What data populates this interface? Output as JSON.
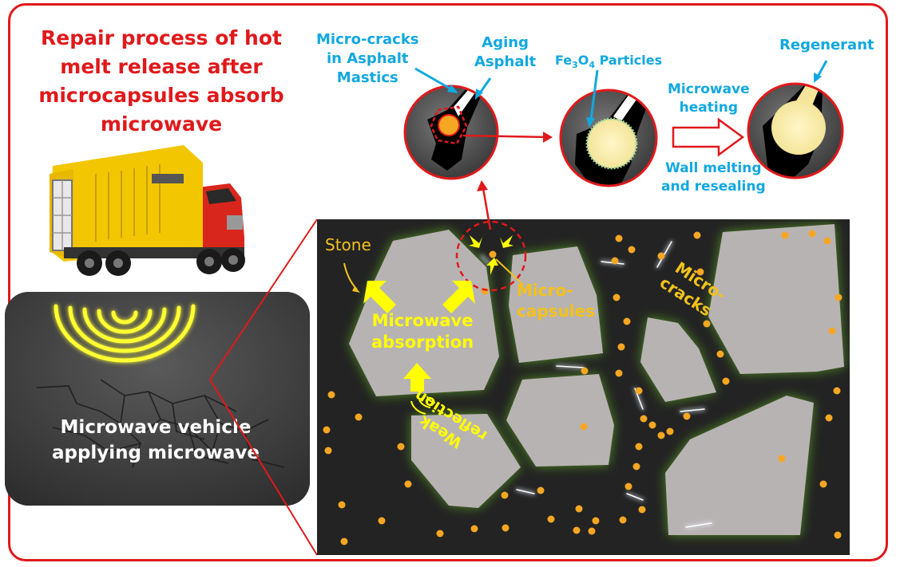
{
  "title_lines": [
    "Repair process of hot",
    "melt release after",
    "microcapsules absorb",
    "microwave"
  ],
  "labels": {
    "micro_cracks_mastics": [
      "Micro-cracks",
      "in Asphalt",
      "Mastics"
    ],
    "aging_asphalt": [
      "Aging",
      "Asphalt"
    ],
    "fe3o4": "Fe",
    "fe3o4_sub1": "3",
    "fe3o4_mid": "O",
    "fe3o4_sub2": "4",
    "fe3o4_rest": " Particles",
    "regenerant": "Regenerant",
    "microwave_heating": [
      "Microwave",
      "heating"
    ],
    "wall_melting": [
      "Wall melting",
      "and resealing"
    ],
    "stone": "Stone",
    "microwave_absorption": [
      "Microwave",
      "absorption"
    ],
    "micro_capsules": [
      "Micro-",
      "capsules"
    ],
    "micro_cracks_scene": [
      "Micro-",
      "cracks"
    ],
    "weak_reflection": [
      "Weak",
      "reflection"
    ],
    "road_caption": [
      "Microwave vehicle",
      "applying microwave"
    ]
  },
  "colors": {
    "frame": "#e0191b",
    "title": "#e0191b",
    "callout": "#11a8e0",
    "scene_text": "#f2c21b",
    "stone": "#b8b3b3",
    "stone_glow": "#4f8a24",
    "capsule": "#f5a623",
    "arrow_yellow": "#ffff00"
  }
}
